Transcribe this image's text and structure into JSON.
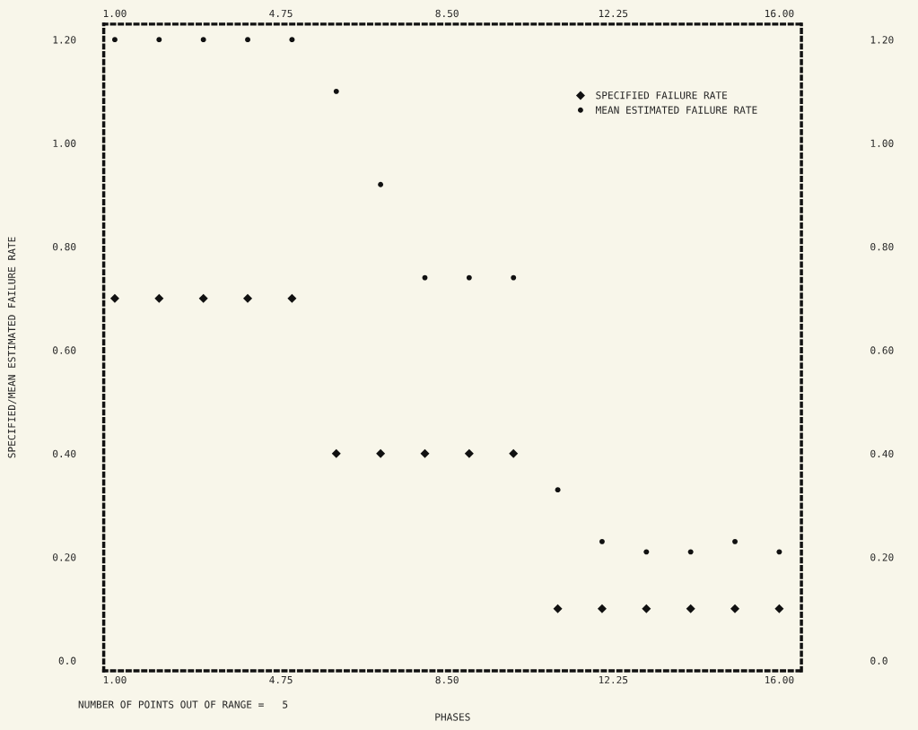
{
  "chart_data": {
    "type": "scatter",
    "xlabel": "PHASES",
    "ylabel": "SPECIFIED/MEAN ESTIMATED FAILURE RATE",
    "x": [
      1,
      2,
      3,
      4,
      5,
      6,
      7,
      8,
      9,
      10,
      11,
      12,
      13,
      14,
      15,
      16
    ],
    "series": [
      {
        "name": "SPECIFIED FAILURE RATE",
        "color": "#111111",
        "marker": "diamond",
        "values": [
          0.7,
          0.7,
          0.7,
          0.7,
          0.7,
          0.4,
          0.4,
          0.4,
          0.4,
          0.4,
          0.1,
          0.1,
          0.1,
          0.1,
          0.1,
          0.1
        ]
      },
      {
        "name": "MEAN ESTIMATED FAILURE RATE",
        "color": "#111111",
        "marker": "circle",
        "values": [
          1.2,
          1.2,
          1.2,
          1.2,
          1.2,
          1.1,
          0.92,
          0.74,
          0.74,
          0.74,
          0.33,
          0.23,
          0.21,
          0.21,
          0.23,
          0.21
        ]
      }
    ],
    "xlim": [
      0.75,
      16.5
    ],
    "xticks": [
      {
        "value": 1,
        "label": "1.00"
      },
      4.75,
      {
        "value": 8.5,
        "label": "8.50"
      },
      12.25,
      {
        "value": 16,
        "label": "16.00"
      }
    ],
    "x2lim": [
      0.75,
      16.5
    ],
    "x2ticks": [
      {
        "value": 1,
        "label": "1.00"
      },
      4.75,
      {
        "value": 8.5,
        "label": "8.50"
      },
      12.25,
      {
        "value": 16,
        "label": "16.00"
      }
    ],
    "ylim": [
      -0.02,
      1.23
    ],
    "yticks": [
      {
        "value": 0,
        "label": "0.0"
      },
      {
        "value": 0.2,
        "label": "0.20"
      },
      {
        "value": 0.4,
        "label": "0.40"
      },
      {
        "value": 0.6,
        "label": "0.60"
      },
      {
        "value": 0.8,
        "label": "0.80"
      },
      {
        "value": 1.0,
        "label": "1.00"
      },
      {
        "value": 1.2,
        "label": "1.20"
      }
    ],
    "y2lim": [
      -0.02,
      1.23
    ],
    "y2ticks": [
      {
        "value": 0,
        "label": "0.0"
      },
      {
        "value": 0.2,
        "label": "0.20"
      },
      {
        "value": 0.4,
        "label": "0.40"
      },
      {
        "value": 0.6,
        "label": "0.60"
      },
      {
        "value": 0.8,
        "label": "0.80"
      },
      {
        "value": 1.0,
        "label": "1.00"
      },
      {
        "value": 1.2,
        "label": "1.20"
      }
    ],
    "legend": "top right",
    "grid": false,
    "annotations": [
      "NUMBER OF POINTS OUT OF RANGE =   5"
    ]
  }
}
